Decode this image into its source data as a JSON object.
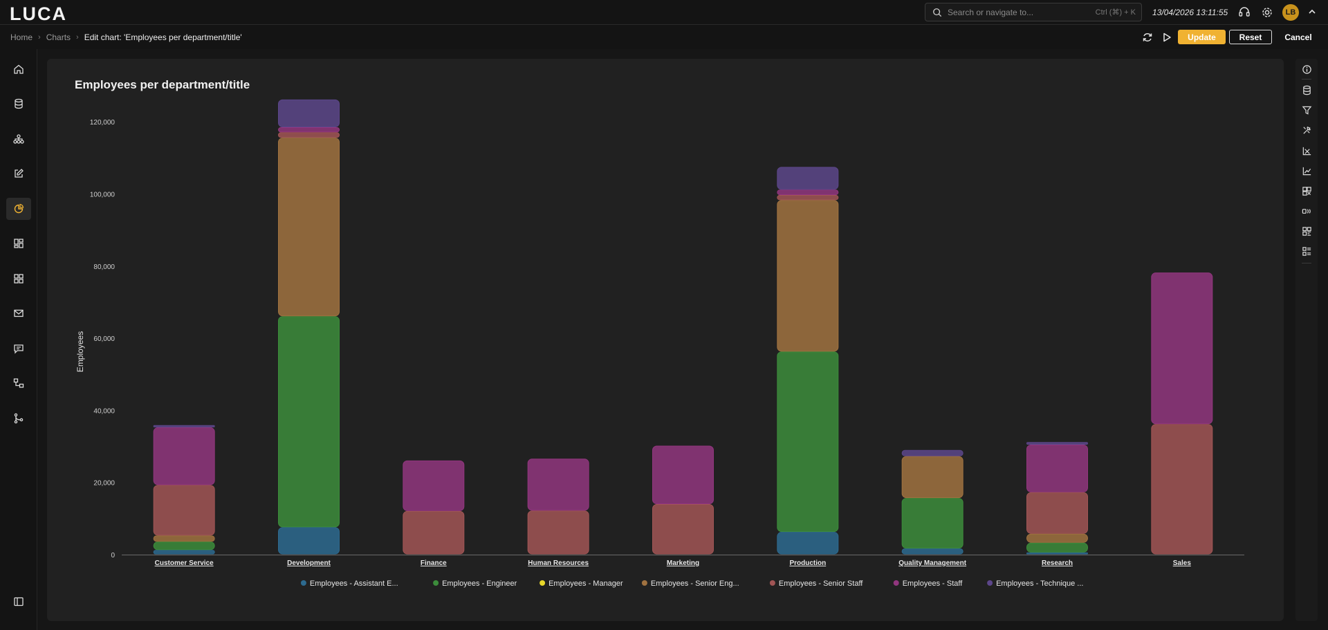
{
  "app": {
    "logo": "LUCA"
  },
  "search": {
    "placeholder": "Search or navigate to...",
    "shortcut": "Ctrl (⌘) + K"
  },
  "header": {
    "datetime": "13/04/2026 13:11:55",
    "avatar_initials": "LB"
  },
  "breadcrumb": {
    "items": [
      "Home",
      "Charts"
    ],
    "current": "Edit chart: 'Employees per department/title'"
  },
  "actions": {
    "update": "Update",
    "reset": "Reset",
    "cancel": "Cancel"
  },
  "left_nav": [
    "home-icon",
    "database-icon",
    "hierarchy-icon",
    "edit-icon",
    "pie-chart-icon",
    "dashboard-icon",
    "grid-icon",
    "mail-icon",
    "message-icon",
    "workflow-icon",
    "git-branch-icon",
    "sidebar-toggle-icon"
  ],
  "right_tools": [
    "info-icon",
    "database-icon",
    "filter-icon",
    "tools-icon",
    "axis-icon",
    "chart-line-icon",
    "layout-icon",
    "code-icon",
    "qr-icon",
    "list-icon"
  ],
  "colors": {
    "accent": "#f0b232"
  },
  "chart_data": {
    "type": "bar",
    "stacked": true,
    "title": "Employees per department/title",
    "ylabel": "Employees",
    "xlabel": "",
    "ylim": [
      0,
      130000
    ],
    "yticks": [
      "0",
      "20,000",
      "40,000",
      "60,000",
      "80,000",
      "100,000",
      "120,000"
    ],
    "grid": false,
    "legend_position": "bottom",
    "categories": [
      "Customer Service",
      "Development",
      "Finance",
      "Human Resources",
      "Marketing",
      "Production",
      "Quality Management",
      "Research",
      "Sales"
    ],
    "series": [
      {
        "name": "Employees - Assistant E...",
        "color": "#2d6a8f",
        "values": [
          1200,
          7500,
          0,
          0,
          0,
          6200,
          1600,
          500,
          0
        ]
      },
      {
        "name": "Employees - Engineer",
        "color": "#3c8c3b",
        "values": [
          2300,
          58500,
          0,
          0,
          0,
          50000,
          14000,
          2700,
          0
        ]
      },
      {
        "name": "Employees - Manager",
        "color": "#e8d72a",
        "values": [
          0,
          0,
          0,
          0,
          0,
          0,
          0,
          0,
          0
        ]
      },
      {
        "name": "Employees - Senior Eng...",
        "color": "#a07240",
        "values": [
          1700,
          49500,
          0,
          0,
          0,
          42000,
          11600,
          2500,
          0
        ]
      },
      {
        "name": "Employees - Senior Staff",
        "color": "#a15555",
        "values": [
          14000,
          1500,
          12000,
          12100,
          13900,
          1400,
          0,
          11500,
          36100
        ]
      },
      {
        "name": "Employees - Staff",
        "color": "#91367e",
        "values": [
          16000,
          1400,
          14000,
          14400,
          16200,
          1500,
          0,
          13200,
          42000
        ]
      },
      {
        "name": "Employees - Technique ...",
        "color": "#5c468a",
        "values": [
          600,
          7700,
          0,
          0,
          0,
          6300,
          1700,
          700,
          0
        ]
      }
    ]
  }
}
